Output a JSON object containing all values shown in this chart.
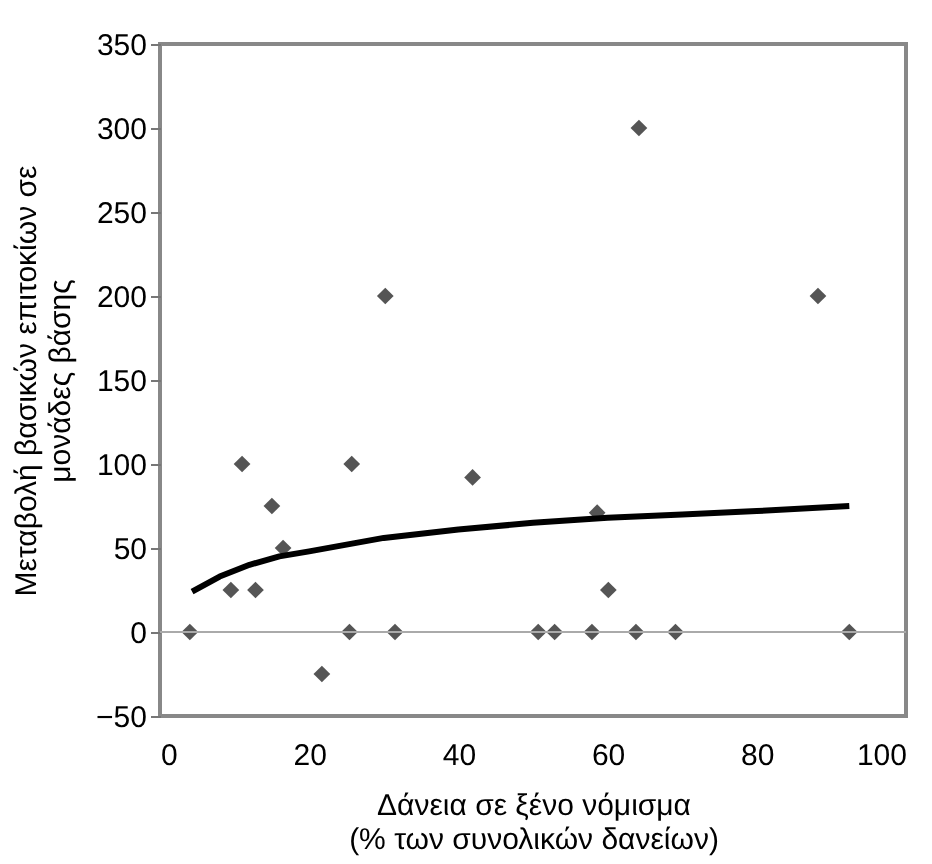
{
  "chart_data": {
    "type": "scatter",
    "xlabel": "Δάνεια σε ξένο νόμισμα\n(% των συνολικών δανείων)",
    "ylabel": "Μεταβολή βασικών επιτοκίων σε\nμονάδες βάσης",
    "xlim": [
      0,
      100
    ],
    "xticks": [
      0,
      20,
      40,
      60,
      80,
      100
    ],
    "ylim": [
      -50,
      350
    ],
    "yticks": [
      -50,
      0,
      50,
      100,
      150,
      200,
      250,
      300,
      350
    ],
    "grid": false,
    "ref_lines": [
      {
        "axis": "y",
        "value": 0,
        "color": "#aaaaaa"
      }
    ],
    "series": [
      {
        "color": "#555555",
        "marker": "diamond",
        "x": [
          4,
          9.5,
          11,
          12.8,
          15,
          16.5,
          21.7,
          25.4,
          25.7,
          30.2,
          31.5,
          41.9,
          50.7,
          52.9,
          57.9,
          58.6,
          60.1,
          63.8,
          64.2,
          69.1,
          88.2,
          92.4
        ],
        "values": [
          0,
          25,
          100,
          25,
          75,
          50,
          -25,
          0,
          100,
          200,
          0,
          92,
          0,
          0,
          0,
          71,
          25,
          0,
          300,
          0,
          200,
          0
        ]
      },
      {
        "type": "line",
        "color": "#000000",
        "line_style": "solid",
        "x": [
          4.3,
          8,
          12,
          16,
          20,
          30,
          40,
          50,
          60,
          70,
          80,
          92.4
        ],
        "values": [
          24,
          33,
          40,
          45,
          48,
          56,
          61,
          65,
          68,
          70,
          72,
          75
        ]
      }
    ]
  }
}
